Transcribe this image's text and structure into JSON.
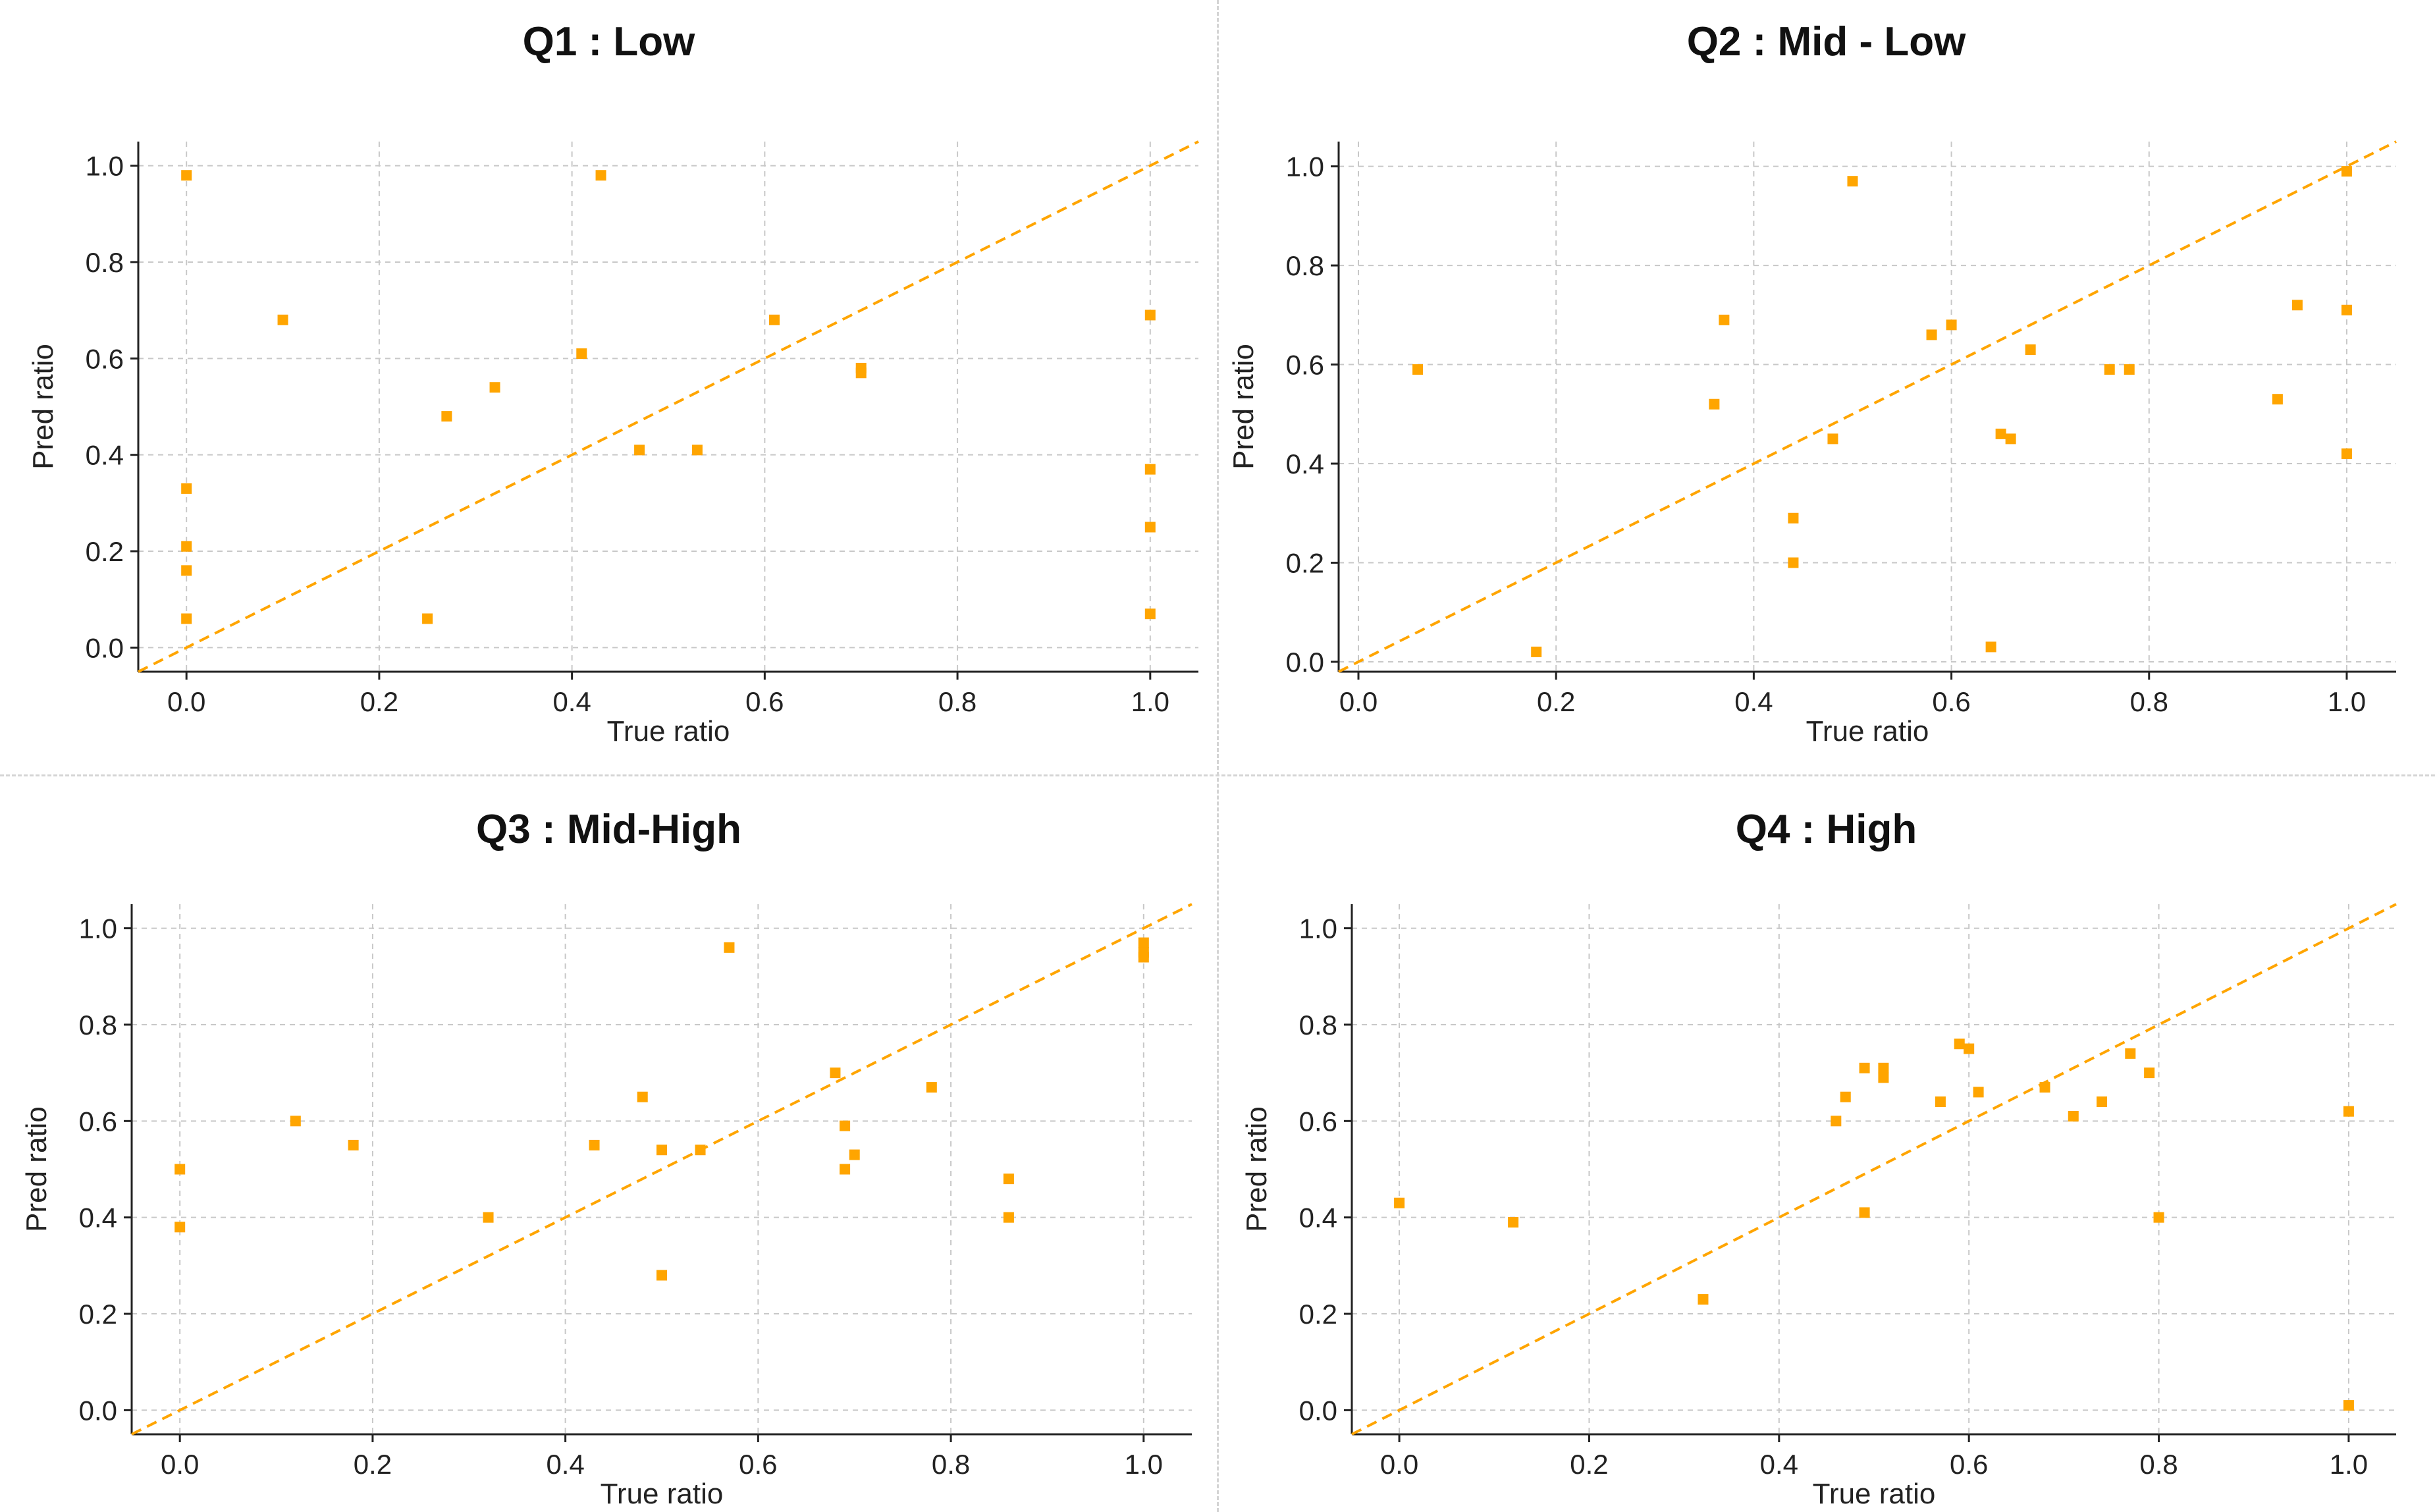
{
  "colors": {
    "marker": "#FFA500",
    "diagonal": "#FFA500",
    "grid": "#c8c8c8",
    "axis": "#222222"
  },
  "chart_data": [
    {
      "type": "scatter",
      "title": "Q1 : Low",
      "xlabel": "True ratio",
      "ylabel": "Pred ratio",
      "xlim": [
        -0.05,
        1.05
      ],
      "ylim": [
        -0.05,
        1.05
      ],
      "xticks": [
        "0.0",
        "0.2",
        "0.4",
        "0.6",
        "0.8",
        "1.0"
      ],
      "yticks": [
        "0.0",
        "0.2",
        "0.4",
        "0.6",
        "0.8",
        "1.0"
      ],
      "grid": true,
      "reference_line": "y = x",
      "points": [
        [
          0.0,
          0.98
        ],
        [
          0.0,
          0.33
        ],
        [
          0.0,
          0.21
        ],
        [
          0.0,
          0.16
        ],
        [
          0.0,
          0.06
        ],
        [
          0.1,
          0.68
        ],
        [
          0.25,
          0.06
        ],
        [
          0.27,
          0.48
        ],
        [
          0.32,
          0.54
        ],
        [
          0.41,
          0.61
        ],
        [
          0.43,
          0.98
        ],
        [
          0.47,
          0.41
        ],
        [
          0.53,
          0.41
        ],
        [
          0.61,
          0.68
        ],
        [
          0.7,
          0.58
        ],
        [
          0.7,
          0.57
        ],
        [
          1.0,
          0.69
        ],
        [
          1.0,
          0.37
        ],
        [
          1.0,
          0.25
        ],
        [
          1.0,
          0.07
        ]
      ]
    },
    {
      "type": "scatter",
      "title": "Q2 : Mid - Low",
      "xlabel": "True ratio",
      "ylabel": "Pred ratio",
      "xlim": [
        -0.02,
        1.05
      ],
      "ylim": [
        -0.02,
        1.05
      ],
      "xticks": [
        "0.0",
        "0.2",
        "0.4",
        "0.6",
        "0.8",
        "1.0"
      ],
      "yticks": [
        "0.0",
        "0.2",
        "0.4",
        "0.6",
        "0.8",
        "1.0"
      ],
      "grid": true,
      "reference_line": "y = x",
      "points": [
        [
          0.06,
          0.59
        ],
        [
          0.18,
          0.02
        ],
        [
          0.36,
          0.52
        ],
        [
          0.37,
          0.69
        ],
        [
          0.44,
          0.29
        ],
        [
          0.44,
          0.2
        ],
        [
          0.48,
          0.45
        ],
        [
          0.5,
          0.97
        ],
        [
          0.58,
          0.66
        ],
        [
          0.6,
          0.68
        ],
        [
          0.64,
          0.03
        ],
        [
          0.65,
          0.46
        ],
        [
          0.66,
          0.45
        ],
        [
          0.68,
          0.63
        ],
        [
          0.76,
          0.59
        ],
        [
          0.78,
          0.59
        ],
        [
          0.93,
          0.53
        ],
        [
          0.95,
          0.72
        ],
        [
          1.0,
          0.99
        ],
        [
          1.0,
          0.71
        ],
        [
          1.0,
          0.42
        ]
      ]
    },
    {
      "type": "scatter",
      "title": "Q3 : Mid-High",
      "xlabel": "True ratio",
      "ylabel": "Pred ratio",
      "xlim": [
        -0.05,
        1.05
      ],
      "ylim": [
        -0.05,
        1.05
      ],
      "xticks": [
        "0.0",
        "0.2",
        "0.4",
        "0.6",
        "0.8",
        "1.0"
      ],
      "yticks": [
        "0.0",
        "0.2",
        "0.4",
        "0.6",
        "0.8",
        "1.0"
      ],
      "grid": true,
      "reference_line": "y = x",
      "points": [
        [
          0.0,
          0.5
        ],
        [
          0.0,
          0.38
        ],
        [
          0.12,
          0.6
        ],
        [
          0.18,
          0.55
        ],
        [
          0.32,
          0.4
        ],
        [
          0.43,
          0.55
        ],
        [
          0.48,
          0.65
        ],
        [
          0.5,
          0.28
        ],
        [
          0.5,
          0.54
        ],
        [
          0.54,
          0.54
        ],
        [
          0.57,
          0.96
        ],
        [
          0.68,
          0.7
        ],
        [
          0.69,
          0.59
        ],
        [
          0.69,
          0.5
        ],
        [
          0.7,
          0.53
        ],
        [
          0.78,
          0.67
        ],
        [
          0.86,
          0.48
        ],
        [
          0.86,
          0.4
        ],
        [
          1.0,
          0.97
        ],
        [
          1.0,
          0.95
        ],
        [
          1.0,
          0.94
        ]
      ]
    },
    {
      "type": "scatter",
      "title": "Q4 : High",
      "xlabel": "True ratio",
      "ylabel": "Pred ratio",
      "xlim": [
        -0.05,
        1.05
      ],
      "ylim": [
        -0.05,
        1.05
      ],
      "xticks": [
        "0.0",
        "0.2",
        "0.4",
        "0.6",
        "0.8",
        "1.0"
      ],
      "yticks": [
        "0.0",
        "0.2",
        "0.4",
        "0.6",
        "0.8",
        "1.0"
      ],
      "grid": true,
      "reference_line": "y = x",
      "points": [
        [
          0.0,
          0.43
        ],
        [
          0.12,
          0.39
        ],
        [
          0.32,
          0.23
        ],
        [
          0.46,
          0.6
        ],
        [
          0.47,
          0.65
        ],
        [
          0.49,
          0.71
        ],
        [
          0.49,
          0.41
        ],
        [
          0.51,
          0.71
        ],
        [
          0.51,
          0.69
        ],
        [
          0.57,
          0.64
        ],
        [
          0.59,
          0.76
        ],
        [
          0.6,
          0.75
        ],
        [
          0.61,
          0.66
        ],
        [
          0.68,
          0.67
        ],
        [
          0.71,
          0.61
        ],
        [
          0.74,
          0.64
        ],
        [
          0.77,
          0.74
        ],
        [
          0.79,
          0.7
        ],
        [
          0.8,
          0.4
        ],
        [
          1.0,
          0.62
        ],
        [
          1.0,
          0.01
        ]
      ]
    }
  ]
}
